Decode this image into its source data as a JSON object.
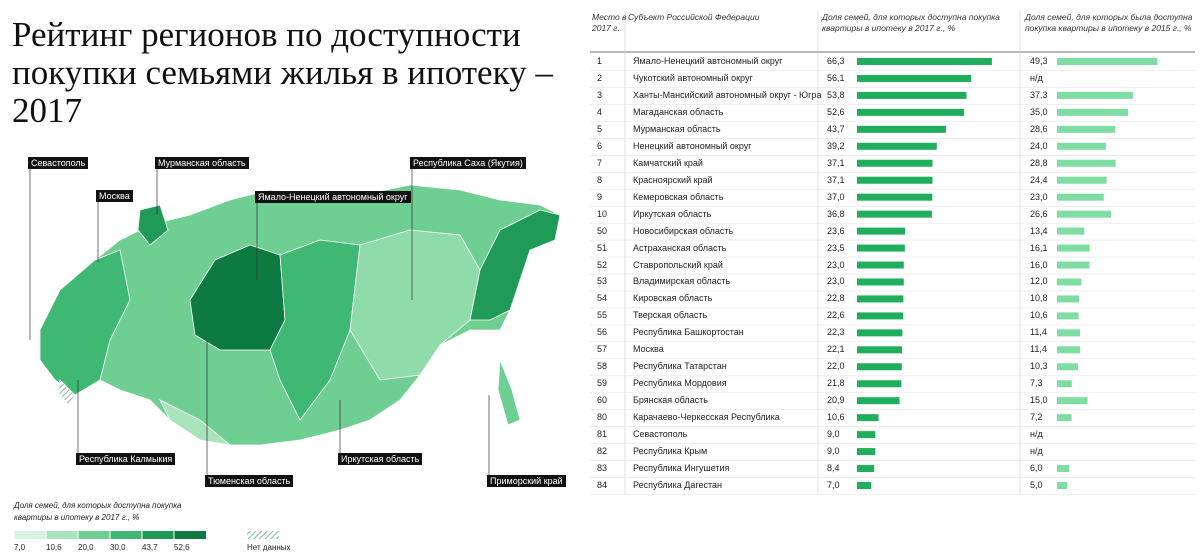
{
  "title": "Рейтинг регионов по доступности покупки семьями жилья в ипотеку – 2017",
  "map_labels": [
    "Севастополь",
    "Мурманская область",
    "Москва",
    "Ямало-Ненецкий автономный округ",
    "Республика Саха (Якутия)",
    "Республика Калмыкия",
    "Тюменская область",
    "Иркутская область",
    "Приморский край"
  ],
  "legend": {
    "title": "Доля семей, для которых доступна покупка квартиры в ипотеку в 2017 г., %",
    "ticks": [
      {
        "value": 7.0,
        "label": "7,0"
      },
      {
        "value": 10.6,
        "label": "10,6"
      },
      {
        "value": 20.0,
        "label": "20,0"
      },
      {
        "value": 30.0,
        "label": "30,0"
      },
      {
        "value": 43.7,
        "label": "43,7"
      },
      {
        "value": 52.6,
        "label": "52,6"
      }
    ],
    "colors": [
      "#d6f2e0",
      "#a8e3bd",
      "#6fcf93",
      "#3fb873",
      "#1f9a57",
      "#0d7a41"
    ],
    "no_data": "Нет данных"
  },
  "table": {
    "headers": [
      "Место в 2017 г.",
      "Субъект Российской Федерации",
      "Доля семей, для которых доступна покупка квартиры в ипотеку в 2017 г., %",
      "Доля семей, для которых была доступна покупка квартиры в ипотеку в 2015 г., %"
    ],
    "colors": [
      "#1fae5b",
      "#7fdca3"
    ],
    "rows": [
      {
        "rank": 1,
        "region": "Ямало-Ненецкий автономный округ",
        "share2017": 66.3,
        "share2017_label": "66,3",
        "share2015": 49.3,
        "share2015_label": "49,3"
      },
      {
        "rank": 2,
        "region": "Чукотский автономный округ",
        "share2017": 56.1,
        "share2017_label": "56,1",
        "share2015": null,
        "share2015_label": "н/д"
      },
      {
        "rank": 3,
        "region": "Ханты-Мансийский автономный округ - Югра",
        "share2017": 53.8,
        "share2017_label": "53,8",
        "share2015": 37.3,
        "share2015_label": "37,3"
      },
      {
        "rank": 4,
        "region": "Магаданская область",
        "share2017": 52.6,
        "share2017_label": "52,6",
        "share2015": 35.0,
        "share2015_label": "35,0"
      },
      {
        "rank": 5,
        "region": "Мурманская область",
        "share2017": 43.7,
        "share2017_label": "43,7",
        "share2015": 28.6,
        "share2015_label": "28,6"
      },
      {
        "rank": 6,
        "region": "Ненецкий автономный округ",
        "share2017": 39.2,
        "share2017_label": "39,2",
        "share2015": 24.0,
        "share2015_label": "24,0"
      },
      {
        "rank": 7,
        "region": "Камчатский край",
        "share2017": 37.1,
        "share2017_label": "37,1",
        "share2015": 28.8,
        "share2015_label": "28,8"
      },
      {
        "rank": 8,
        "region": "Красноярский край",
        "share2017": 37.1,
        "share2017_label": "37,1",
        "share2015": 24.4,
        "share2015_label": "24,4"
      },
      {
        "rank": 9,
        "region": "Кемеровская область",
        "share2017": 37.0,
        "share2017_label": "37,0",
        "share2015": 23.0,
        "share2015_label": "23,0"
      },
      {
        "rank": 10,
        "region": "Иркутская область",
        "share2017": 36.8,
        "share2017_label": "36,8",
        "share2015": 26.6,
        "share2015_label": "26,6"
      },
      {
        "rank": 50,
        "region": "Новосибирская область",
        "share2017": 23.6,
        "share2017_label": "23,6",
        "share2015": 13.4,
        "share2015_label": "13,4"
      },
      {
        "rank": 51,
        "region": "Астраханская область",
        "share2017": 23.5,
        "share2017_label": "23,5",
        "share2015": 16.1,
        "share2015_label": "16,1"
      },
      {
        "rank": 52,
        "region": "Ставропольский край",
        "share2017": 23.0,
        "share2017_label": "23,0",
        "share2015": 16.0,
        "share2015_label": "16,0"
      },
      {
        "rank": 53,
        "region": "Владимирская область",
        "share2017": 23.0,
        "share2017_label": "23,0",
        "share2015": 12.0,
        "share2015_label": "12,0"
      },
      {
        "rank": 54,
        "region": "Кировская область",
        "share2017": 22.8,
        "share2017_label": "22,8",
        "share2015": 10.8,
        "share2015_label": "10,8"
      },
      {
        "rank": 55,
        "region": "Тверская область",
        "share2017": 22.6,
        "share2017_label": "22,6",
        "share2015": 10.6,
        "share2015_label": "10,6"
      },
      {
        "rank": 56,
        "region": "Республика Башкортостан",
        "share2017": 22.3,
        "share2017_label": "22,3",
        "share2015": 11.4,
        "share2015_label": "11,4"
      },
      {
        "rank": 57,
        "region": "Москва",
        "share2017": 22.1,
        "share2017_label": "22,1",
        "share2015": 11.4,
        "share2015_label": "11,4"
      },
      {
        "rank": 58,
        "region": "Республика Татарстан",
        "share2017": 22.0,
        "share2017_label": "22,0",
        "share2015": 10.3,
        "share2015_label": "10,3"
      },
      {
        "rank": 59,
        "region": "Республика Мордовия",
        "share2017": 21.8,
        "share2017_label": "21,8",
        "share2015": 7.3,
        "share2015_label": "7,3"
      },
      {
        "rank": 60,
        "region": "Брянская область",
        "share2017": 20.9,
        "share2017_label": "20,9",
        "share2015": 15.0,
        "share2015_label": "15,0"
      },
      {
        "rank": 80,
        "region": "Карачаево-Черкесская Республика",
        "share2017": 10.6,
        "share2017_label": "10,6",
        "share2015": 7.2,
        "share2015_label": "7,2"
      },
      {
        "rank": 81,
        "region": "Севастополь",
        "share2017": 9.0,
        "share2017_label": "9,0",
        "share2015": null,
        "share2015_label": "н/д"
      },
      {
        "rank": 82,
        "region": "Республика Крым",
        "share2017": 9.0,
        "share2017_label": "9,0",
        "share2015": null,
        "share2015_label": "н/д"
      },
      {
        "rank": 83,
        "region": "Республика Ингушетия",
        "share2017": 8.4,
        "share2017_label": "8,4",
        "share2015": 6.0,
        "share2015_label": "6,0"
      },
      {
        "rank": 84,
        "region": "Республика Дагестан",
        "share2017": 7.0,
        "share2017_label": "7,0",
        "share2015": 5.0,
        "share2015_label": "5,0"
      }
    ]
  }
}
